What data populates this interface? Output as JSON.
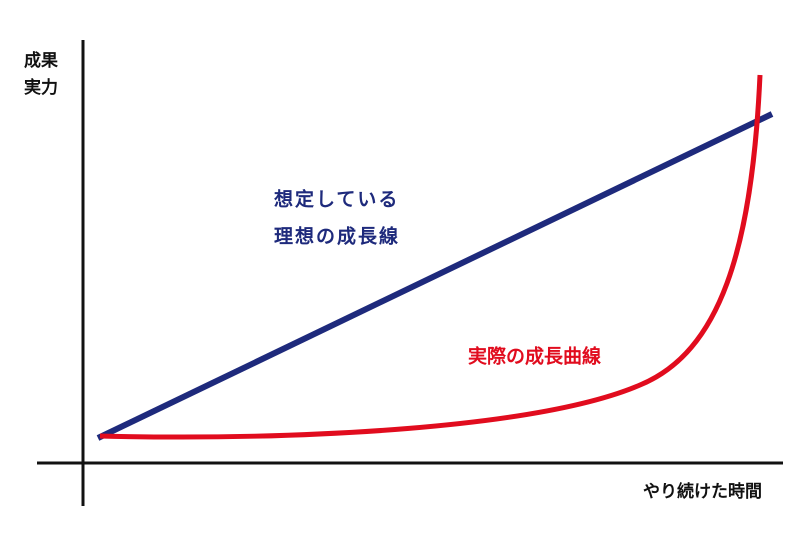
{
  "axes": {
    "y_label": [
      "成果",
      "実力"
    ],
    "x_label": "やり続けた時間"
  },
  "lines": [
    {
      "label": [
        "想定している",
        "理想の成長線"
      ],
      "color": "#1e2a7c"
    },
    {
      "label": [
        "実際の成長曲線"
      ],
      "color": "#e10c1e"
    }
  ]
}
